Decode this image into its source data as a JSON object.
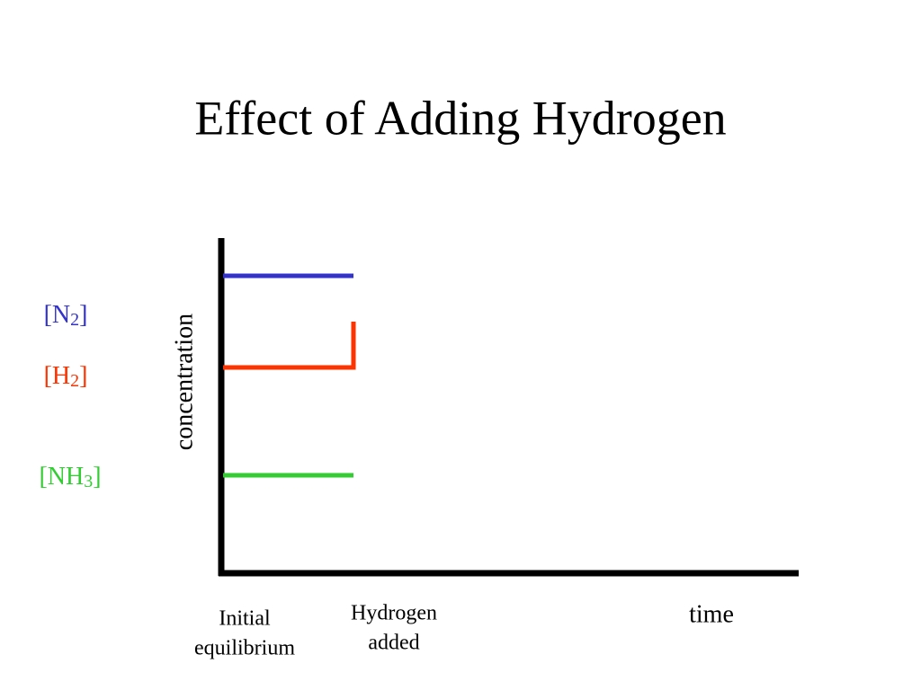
{
  "title": "Effect of Adding Hydrogen",
  "y_axis_label": "concentration",
  "x_axis_label": "time",
  "species": [
    {
      "prefix": "[N",
      "subscript": "2",
      "suffix": "]"
    },
    {
      "prefix": "[H",
      "subscript": "2",
      "suffix": "]"
    },
    {
      "prefix": "[NH",
      "subscript": "3",
      "suffix": "]"
    }
  ],
  "time_labels": [
    {
      "lines": [
        "Initial",
        "equilibrium"
      ]
    },
    {
      "lines": [
        "Hydrogen",
        "added"
      ]
    }
  ]
}
